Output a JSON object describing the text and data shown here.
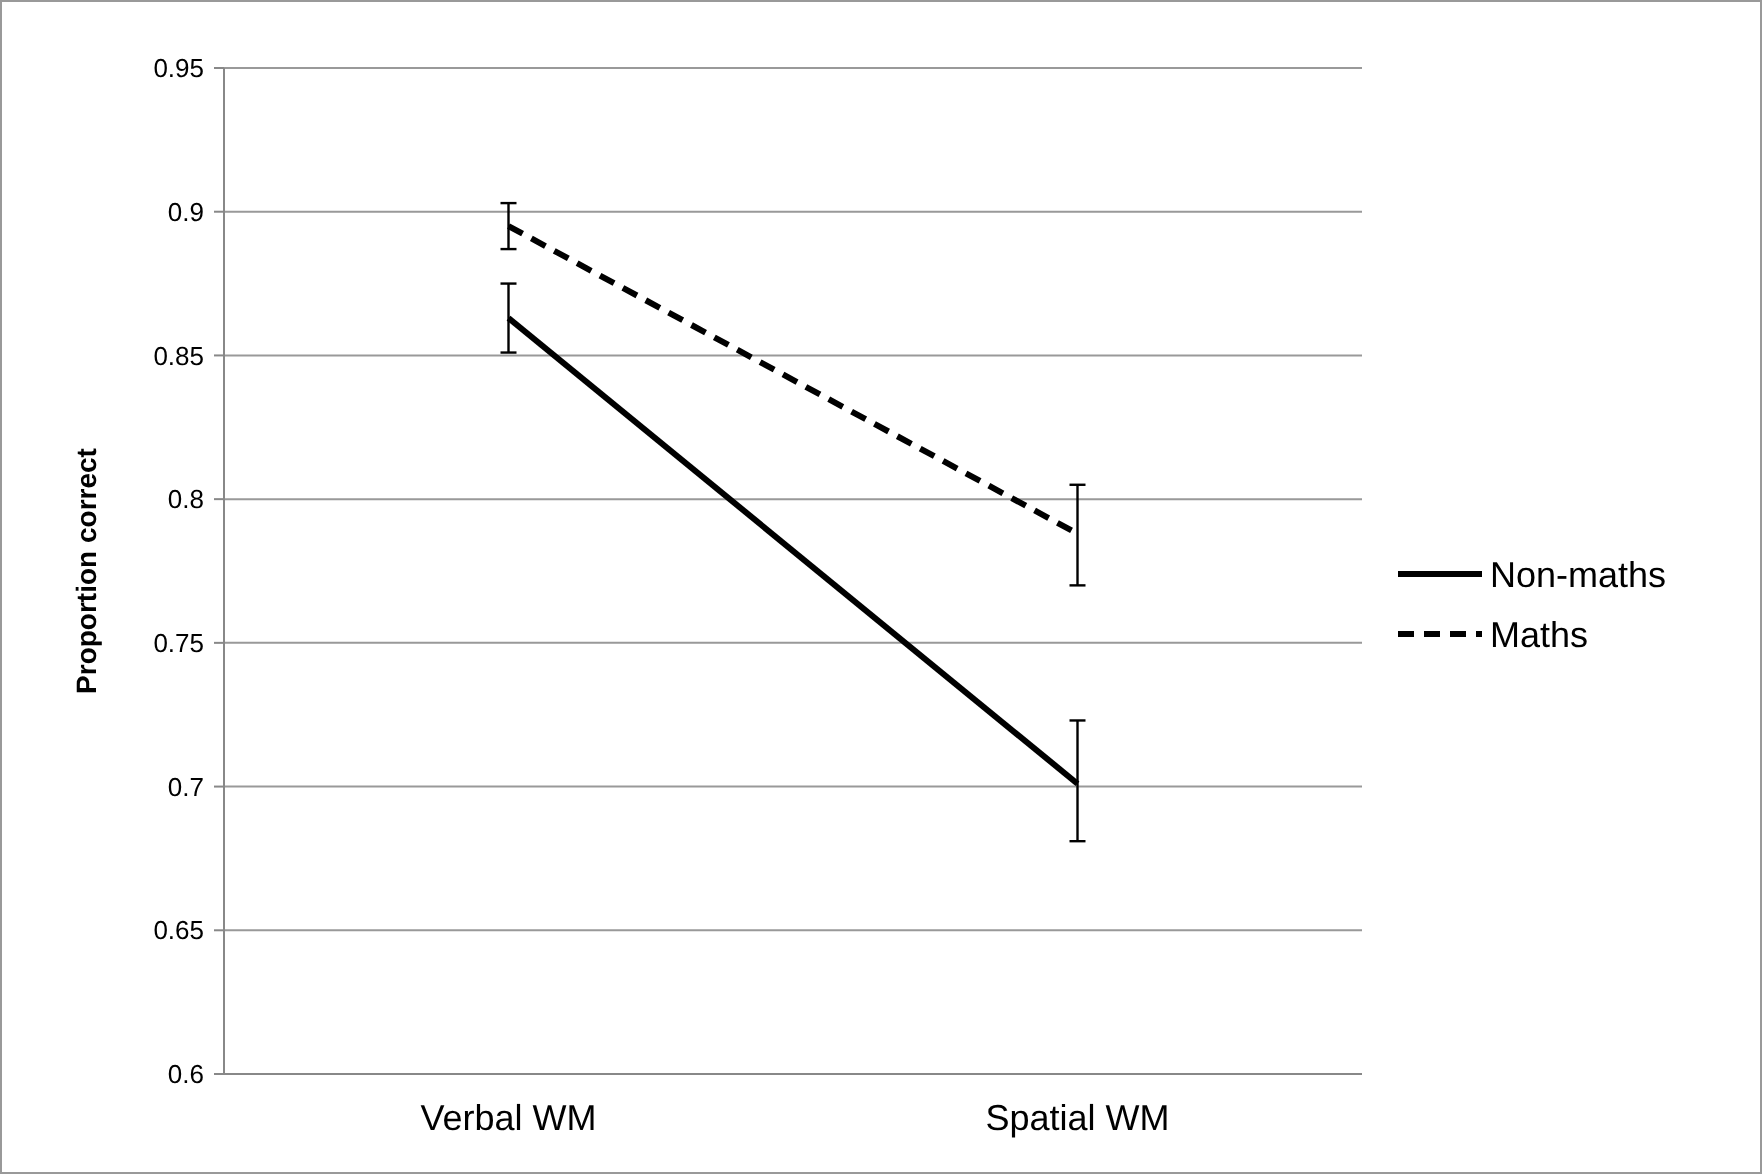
{
  "chart_data": {
    "type": "line",
    "ylabel": "Proportion correct",
    "categories": [
      "Verbal WM",
      "Spatial WM"
    ],
    "series": [
      {
        "name": "Non-maths",
        "color": "#000000",
        "line_style": "solid",
        "values": [
          0.863,
          0.701
        ],
        "errors": [
          [
            0.851,
            0.875
          ],
          [
            0.681,
            0.723
          ]
        ]
      },
      {
        "name": "Maths",
        "color": "#000000",
        "line_style": "dashed",
        "values": [
          0.895,
          0.788
        ],
        "errors": [
          [
            0.887,
            0.903
          ],
          [
            0.77,
            0.805
          ]
        ]
      }
    ],
    "ylim": [
      0.6,
      0.95
    ],
    "yticks": [
      0.6,
      0.65,
      0.7,
      0.75,
      0.8,
      0.85,
      0.9,
      0.95
    ],
    "grid": "y",
    "legend": "right",
    "marker": "none"
  }
}
